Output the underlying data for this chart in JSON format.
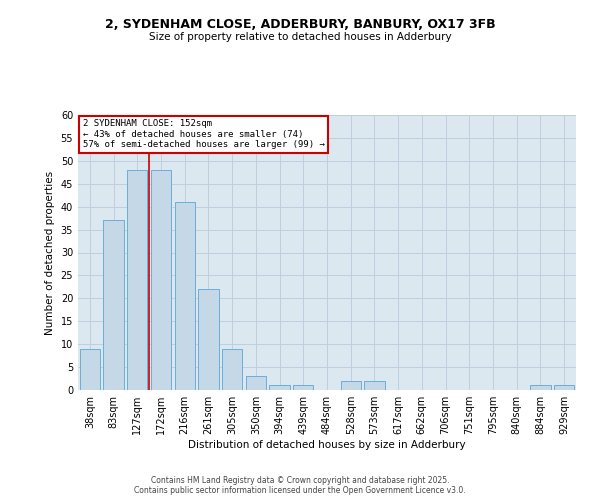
{
  "title": "2, SYDENHAM CLOSE, ADDERBURY, BANBURY, OX17 3FB",
  "subtitle": "Size of property relative to detached houses in Adderbury",
  "xlabel": "Distribution of detached houses by size in Adderbury",
  "ylabel": "Number of detached properties",
  "categories": [
    "38sqm",
    "83sqm",
    "127sqm",
    "172sqm",
    "216sqm",
    "261sqm",
    "305sqm",
    "350sqm",
    "394sqm",
    "439sqm",
    "484sqm",
    "528sqm",
    "573sqm",
    "617sqm",
    "662sqm",
    "706sqm",
    "751sqm",
    "795sqm",
    "840sqm",
    "884sqm",
    "929sqm"
  ],
  "values": [
    9,
    37,
    48,
    48,
    41,
    22,
    9,
    3,
    1,
    1,
    0,
    2,
    2,
    0,
    0,
    0,
    0,
    0,
    0,
    1,
    1
  ],
  "bar_color": "#c5d8e8",
  "bar_edge_color": "#6baed6",
  "subject_label": "2 SYDENHAM CLOSE: 152sqm",
  "annotation_line1": "← 43% of detached houses are smaller (74)",
  "annotation_line2": "57% of semi-detached houses are larger (99) →",
  "annotation_box_color": "#ffffff",
  "annotation_box_edge_color": "#cc0000",
  "subject_line_color": "#cc0000",
  "subject_line_xidx": 2.5,
  "ylim": [
    0,
    60
  ],
  "yticks": [
    0,
    5,
    10,
    15,
    20,
    25,
    30,
    35,
    40,
    45,
    50,
    55,
    60
  ],
  "grid_color": "#c0cfe0",
  "background_color": "#dce8f0",
  "footer_line1": "Contains HM Land Registry data © Crown copyright and database right 2025.",
  "footer_line2": "Contains public sector information licensed under the Open Government Licence v3.0."
}
